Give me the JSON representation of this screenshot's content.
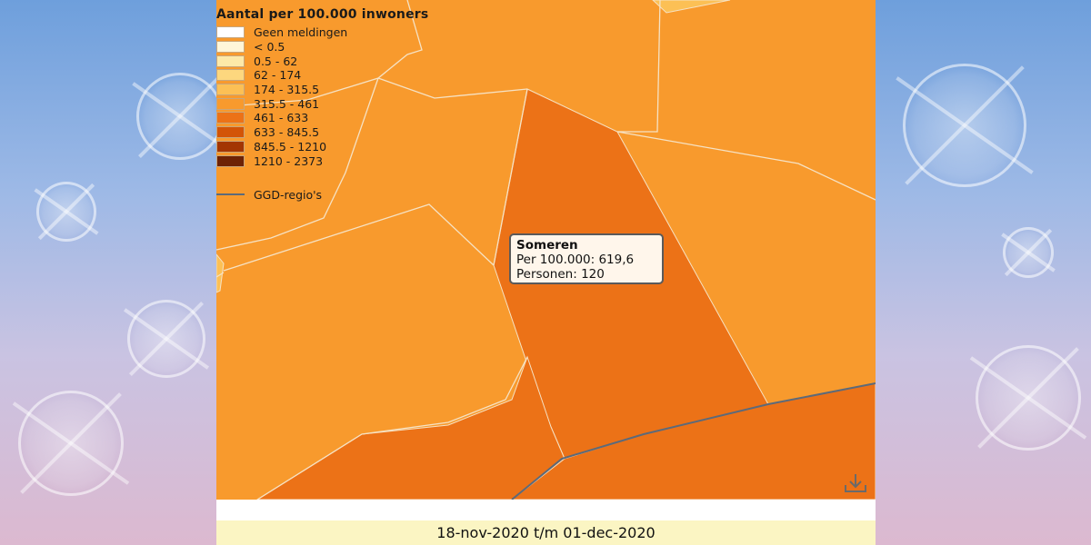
{
  "legend": {
    "title": "Aantal per 100.000 inwoners",
    "items": [
      {
        "label": "Geen meldingen",
        "color": "#ffffff"
      },
      {
        "label": "< 0.5",
        "color": "#fff6d9"
      },
      {
        "label": "0.5 - 62",
        "color": "#fde9a8"
      },
      {
        "label": "62 - 174",
        "color": "#fdd77e"
      },
      {
        "label": "174 - 315.5",
        "color": "#fcc055"
      },
      {
        "label": "315.5 - 461",
        "color": "#f89a2d"
      },
      {
        "label": "461 - 633",
        "color": "#ec7217"
      },
      {
        "label": "633 - 845.5",
        "color": "#d35407"
      },
      {
        "label": "845.5 - 1210",
        "color": "#a33503"
      },
      {
        "label": "1210 - 2373",
        "color": "#6e2205"
      }
    ],
    "line_label": "GGD-regio's",
    "line_color": "#5c6a7a"
  },
  "tooltip": {
    "name": "Someren",
    "per100k": "Per 100.000: 619,6",
    "persons": "Personen: 120"
  },
  "date_range": "18-nov-2020 t/m 01-dec-2020",
  "icons": {
    "download": "download-icon"
  },
  "colors": {
    "region_mid": "#f89a2d",
    "region_high": "#ec7217",
    "region_light": "#fcc055",
    "border": "#f6e2c4",
    "ggd_border": "#5c6a7a"
  }
}
